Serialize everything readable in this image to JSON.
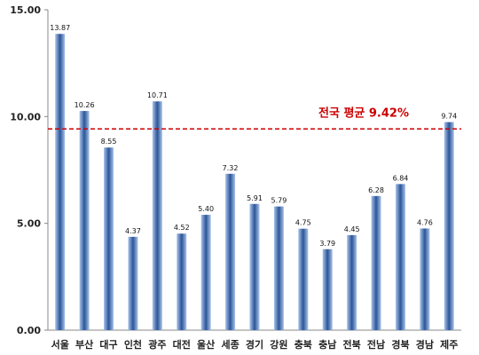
{
  "chart_data": {
    "type": "bar",
    "categories": [
      "서울",
      "부산",
      "대구",
      "인천",
      "광주",
      "대전",
      "울산",
      "세종",
      "경기",
      "강원",
      "충북",
      "충남",
      "전북",
      "전남",
      "경북",
      "경남",
      "제주"
    ],
    "values": [
      13.87,
      10.26,
      8.55,
      4.37,
      10.71,
      4.52,
      5.4,
      7.32,
      5.91,
      5.79,
      4.75,
      3.79,
      4.45,
      6.28,
      6.84,
      4.76,
      9.74
    ],
    "value_labels": [
      "13.87",
      "10.26",
      "8.55",
      "4.37",
      "10.71",
      "4.52",
      "5.40",
      "7.32",
      "5.91",
      "5.79",
      "4.75",
      "3.79",
      "4.45",
      "6.28",
      "6.84",
      "4.76",
      "9.74"
    ],
    "ylim": [
      0,
      15
    ],
    "yticks": [
      0,
      5,
      10,
      15
    ],
    "ytick_labels": [
      "0.00",
      "5.00",
      "10.00",
      "15.00"
    ],
    "grid": false,
    "reference_line": {
      "value": 9.42,
      "label": "전국 평균 9.42%",
      "color": "#cc0000",
      "style": "dashed"
    },
    "bar_color_light": "#a9c4ea",
    "bar_color_dark": "#2c5597"
  }
}
